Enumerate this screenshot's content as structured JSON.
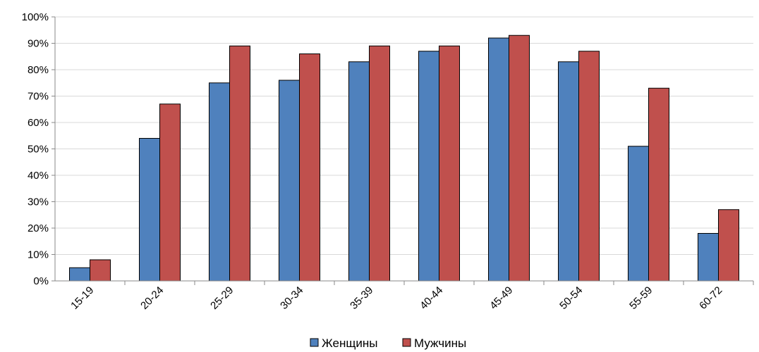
{
  "chart_data": {
    "type": "bar",
    "categories": [
      "15-19",
      "20-24",
      "25-29",
      "30-34",
      "35-39",
      "40-44",
      "45-49",
      "50-54",
      "55-59",
      "60-72"
    ],
    "series": [
      {
        "name": "Женщины",
        "color": "#4F81BD",
        "values": [
          5,
          54,
          75,
          76,
          83,
          87,
          92,
          83,
          51,
          18
        ]
      },
      {
        "name": "Мужчины",
        "color": "#C0504D",
        "values": [
          8,
          67,
          89,
          86,
          89,
          89,
          93,
          87,
          73,
          27
        ]
      }
    ],
    "ylim": [
      0,
      100
    ],
    "yticks": [
      "0%",
      "10%",
      "20%",
      "30%",
      "40%",
      "50%",
      "60%",
      "70%",
      "80%",
      "90%",
      "100%"
    ],
    "grid": true,
    "legend_position": "bottom"
  }
}
